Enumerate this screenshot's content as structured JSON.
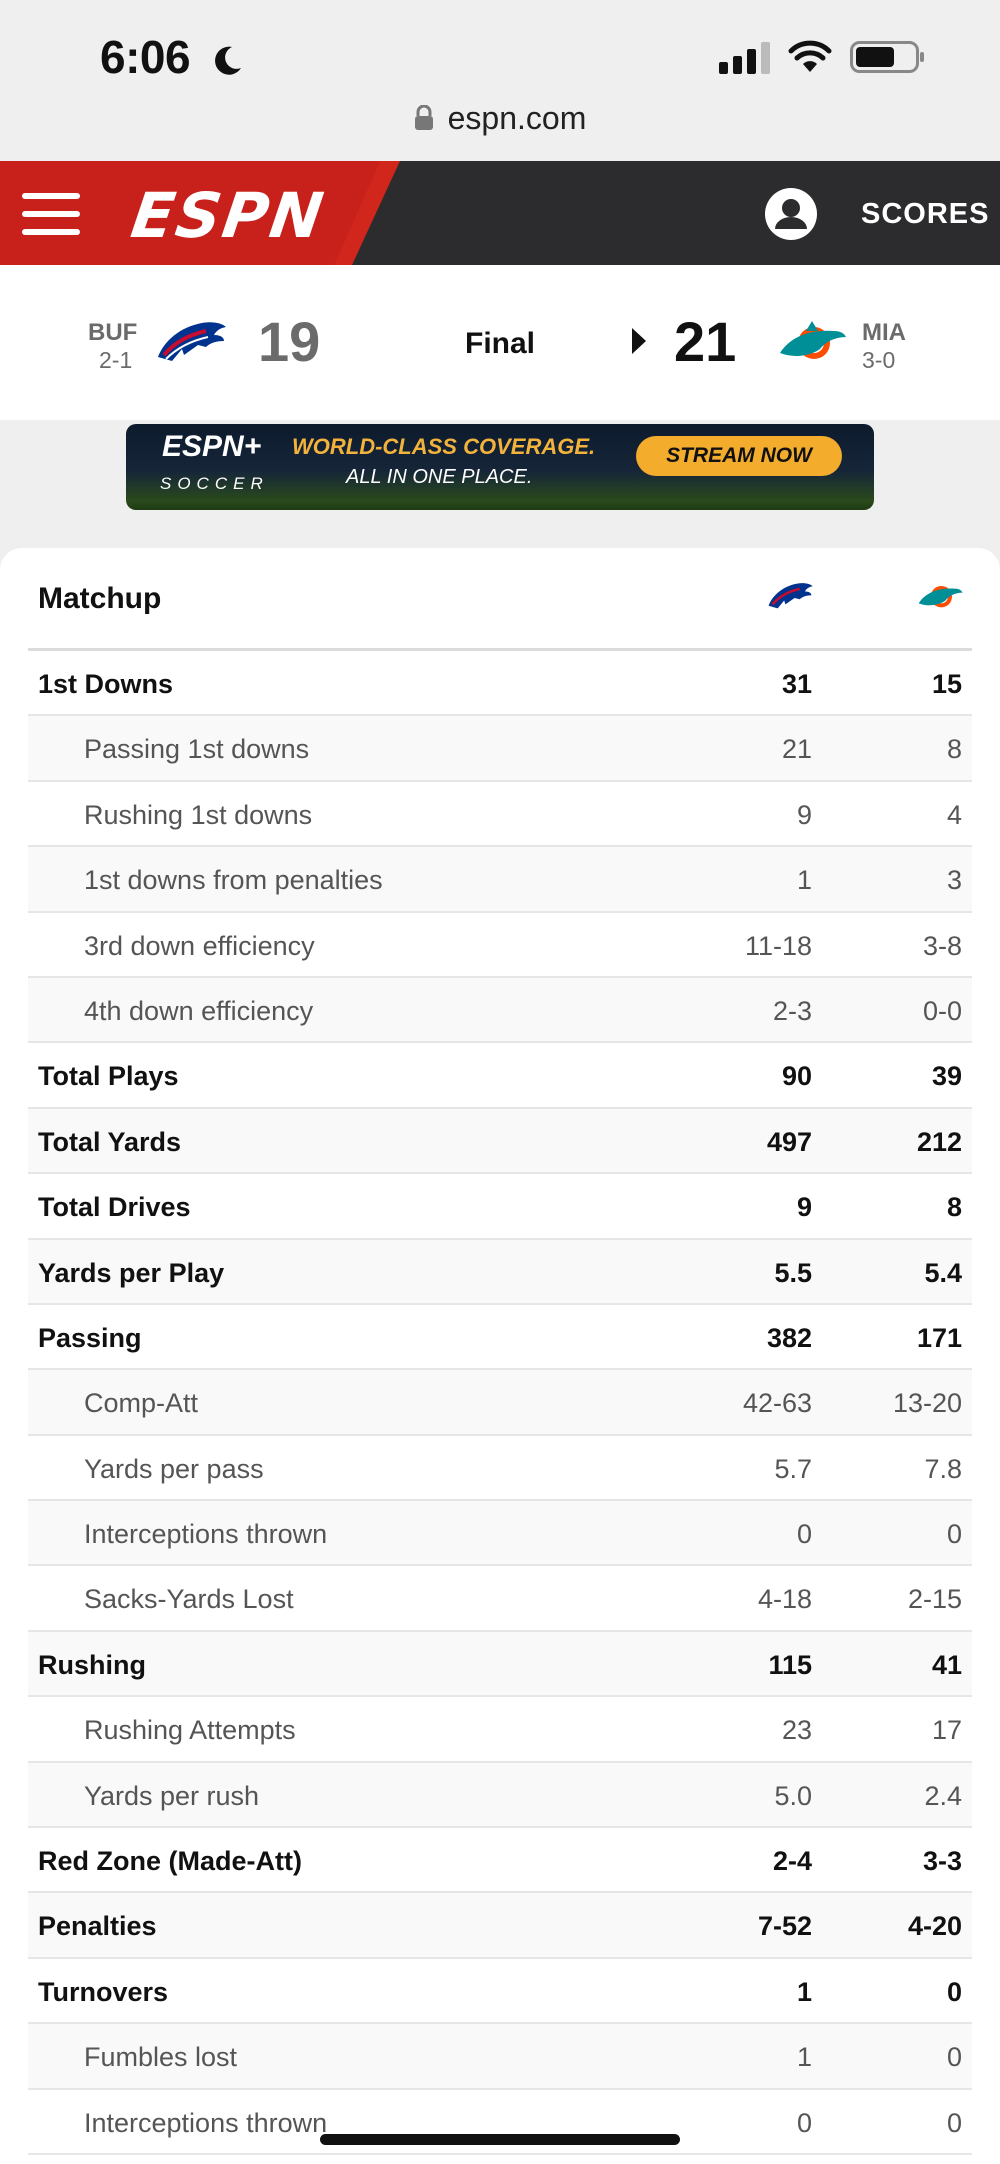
{
  "status_bar": {
    "time": "6:06"
  },
  "browser": {
    "url": "espn.com"
  },
  "header": {
    "logo_text": "ESPN",
    "scores_label": "SCORES"
  },
  "game": {
    "away": {
      "abbr": "BUF",
      "record": "2-1",
      "score": "19"
    },
    "home": {
      "abbr": "MIA",
      "record": "3-0",
      "score": "21"
    },
    "status": "Final"
  },
  "ad": {
    "brand": "ESPN+",
    "sub": "SOCCER",
    "line1": "WORLD-CLASS COVERAGE.",
    "line2": "ALL IN ONE PLACE.",
    "cta": "STREAM NOW"
  },
  "stats": {
    "title": "Matchup",
    "rows": [
      {
        "label": "1st Downs",
        "away": "31",
        "home": "15",
        "type": "main"
      },
      {
        "label": "Passing 1st downs",
        "away": "21",
        "home": "8",
        "type": "sub"
      },
      {
        "label": "Rushing 1st downs",
        "away": "9",
        "home": "4",
        "type": "sub"
      },
      {
        "label": "1st downs from penalties",
        "away": "1",
        "home": "3",
        "type": "sub"
      },
      {
        "label": "3rd down efficiency",
        "away": "11-18",
        "home": "3-8",
        "type": "sub"
      },
      {
        "label": "4th down efficiency",
        "away": "2-3",
        "home": "0-0",
        "type": "sub"
      },
      {
        "label": "Total Plays",
        "away": "90",
        "home": "39",
        "type": "main"
      },
      {
        "label": "Total Yards",
        "away": "497",
        "home": "212",
        "type": "main"
      },
      {
        "label": "Total Drives",
        "away": "9",
        "home": "8",
        "type": "main"
      },
      {
        "label": "Yards per Play",
        "away": "5.5",
        "home": "5.4",
        "type": "main"
      },
      {
        "label": "Passing",
        "away": "382",
        "home": "171",
        "type": "main"
      },
      {
        "label": "Comp-Att",
        "away": "42-63",
        "home": "13-20",
        "type": "sub"
      },
      {
        "label": "Yards per pass",
        "away": "5.7",
        "home": "7.8",
        "type": "sub"
      },
      {
        "label": "Interceptions thrown",
        "away": "0",
        "home": "0",
        "type": "sub"
      },
      {
        "label": "Sacks-Yards Lost",
        "away": "4-18",
        "home": "2-15",
        "type": "sub"
      },
      {
        "label": "Rushing",
        "away": "115",
        "home": "41",
        "type": "main"
      },
      {
        "label": "Rushing Attempts",
        "away": "23",
        "home": "17",
        "type": "sub"
      },
      {
        "label": "Yards per rush",
        "away": "5.0",
        "home": "2.4",
        "type": "sub"
      },
      {
        "label": "Red Zone (Made-Att)",
        "away": "2-4",
        "home": "3-3",
        "type": "main"
      },
      {
        "label": "Penalties",
        "away": "7-52",
        "home": "4-20",
        "type": "main"
      },
      {
        "label": "Turnovers",
        "away": "1",
        "home": "0",
        "type": "main"
      },
      {
        "label": "Fumbles lost",
        "away": "1",
        "home": "0",
        "type": "sub"
      },
      {
        "label": "Interceptions thrown",
        "away": "0",
        "home": "0",
        "type": "sub"
      }
    ]
  },
  "colors": {
    "espn_red": "#d0261c",
    "header_dark": "#2c2c2e",
    "bills_blue": "#00338d",
    "bills_red": "#c60c30",
    "dolphins_aqua": "#008e97",
    "dolphins_orange": "#fc4c02"
  }
}
